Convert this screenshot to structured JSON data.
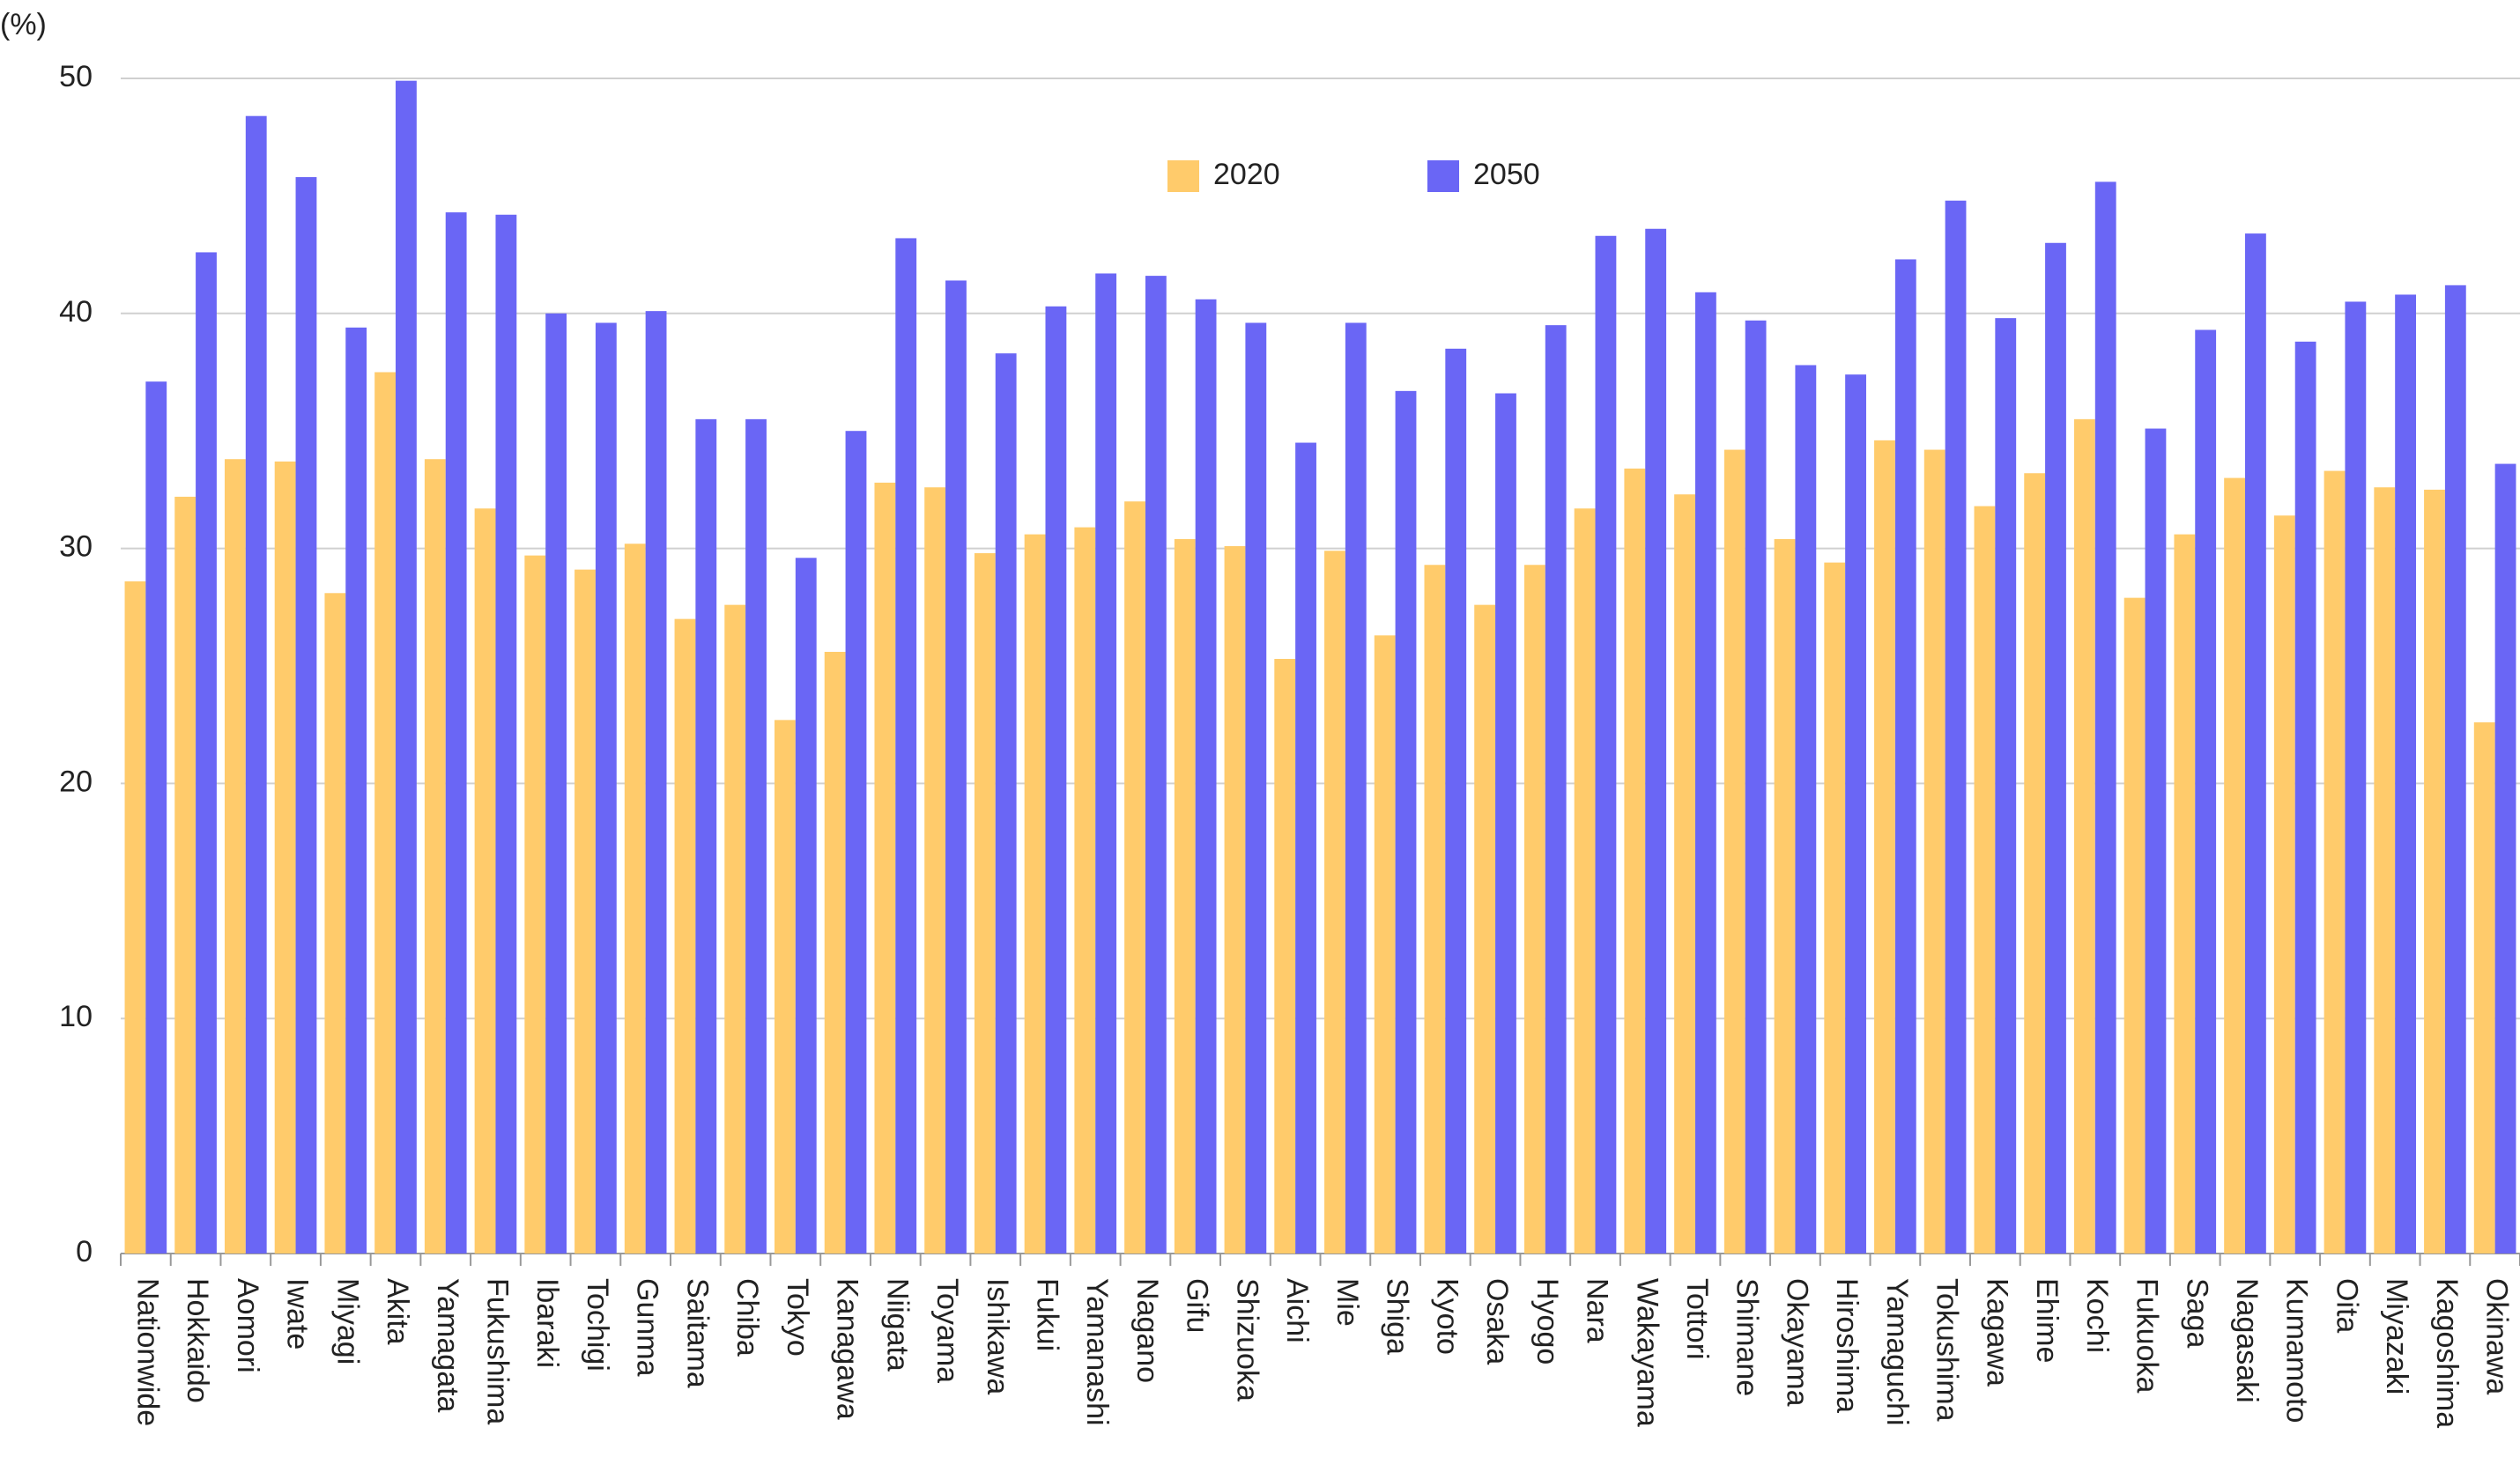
{
  "chart_data": {
    "type": "bar",
    "y_label": "(%)",
    "categories": [
      "Nationwide",
      "Hokkaido",
      "Aomori",
      "Iwate",
      "Miyagi",
      "Akita",
      "Yamagata",
      "Fukushima",
      "Ibaraki",
      "Tochigi",
      "Gunma",
      "Saitama",
      "Chiba",
      "Tokyo",
      "Kanagawa",
      "Niigata",
      "Toyama",
      "Ishikawa",
      "Fukui",
      "Yamanashi",
      "Nagano",
      "Gifu",
      "Shizuoka",
      "Aichi",
      "Mie",
      "Shiga",
      "Kyoto",
      "Osaka",
      "Hyogo",
      "Nara",
      "Wakayama",
      "Tottori",
      "Shimane",
      "Okayama",
      "Hiroshima",
      "Yamaguchi",
      "Tokushima",
      "Kagawa",
      "Ehime",
      "Kochi",
      "Fukuoka",
      "Saga",
      "Nagasaki",
      "Kumamoto",
      "Oita",
      "Miyazaki",
      "Kagoshima",
      "Okinawa"
    ],
    "series": [
      {
        "name": "2020",
        "color": "#ffcb6b",
        "values": [
          28.6,
          32.2,
          33.8,
          33.7,
          28.1,
          37.5,
          33.8,
          31.7,
          29.7,
          29.1,
          30.2,
          27.0,
          27.6,
          22.7,
          25.6,
          32.8,
          32.6,
          29.8,
          30.6,
          30.9,
          32.0,
          30.4,
          30.1,
          25.3,
          29.9,
          26.3,
          29.3,
          27.6,
          29.3,
          31.7,
          33.4,
          32.3,
          34.2,
          30.4,
          29.4,
          34.6,
          34.2,
          31.8,
          33.2,
          35.5,
          27.9,
          30.6,
          33.0,
          31.4,
          33.3,
          32.6,
          32.5,
          22.6
        ]
      },
      {
        "name": "2050",
        "color": "#6a66f5",
        "values": [
          37.1,
          42.6,
          48.4,
          45.8,
          39.4,
          49.9,
          44.3,
          44.2,
          40.0,
          39.6,
          40.1,
          35.5,
          35.5,
          29.6,
          35.0,
          43.2,
          41.4,
          38.3,
          40.3,
          41.7,
          41.6,
          40.6,
          39.6,
          34.5,
          39.6,
          36.7,
          38.5,
          36.6,
          39.5,
          43.3,
          43.6,
          40.9,
          39.7,
          37.8,
          37.4,
          42.3,
          44.8,
          39.8,
          43.0,
          45.6,
          35.1,
          39.3,
          43.4,
          38.8,
          40.5,
          40.8,
          41.2,
          33.6
        ]
      }
    ],
    "ylim": [
      0,
      50
    ],
    "yticks": [
      0,
      10,
      20,
      30,
      40,
      50
    ],
    "grid": true
  }
}
